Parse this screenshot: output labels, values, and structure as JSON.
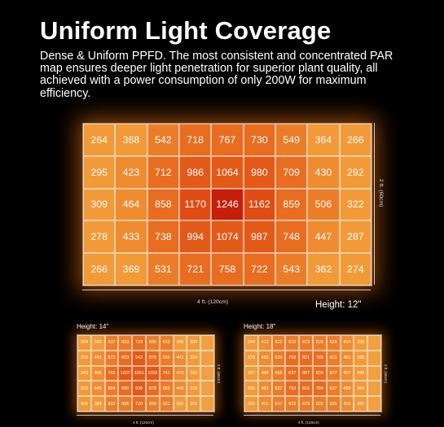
{
  "header": {
    "title": "Uniform Light Coverage",
    "description": "Dense & Uniform PPFD. The most consistent and concentrated PAR map ensures deeper light penetration for superior plant quality, all achieved with a power consumption of only 200W for maximum efficiency."
  },
  "main_map": {
    "width_label": "4 ft. (120cm)",
    "depth_label": "2 ft. (60cm)",
    "height_label": "Height: 12\"",
    "rows": [
      [
        264,
        368,
        542,
        718,
        767,
        730,
        549,
        364,
        266
      ],
      [
        295,
        423,
        712,
        986,
        1064,
        980,
        709,
        430,
        292
      ],
      [
        309,
        464,
        858,
        1170,
        1246,
        1162,
        859,
        506,
        322
      ],
      [
        278,
        433,
        738,
        994,
        1074,
        987,
        748,
        447,
        287
      ],
      [
        266,
        369,
        531,
        721,
        758,
        722,
        543,
        362,
        274
      ]
    ]
  },
  "map_14": {
    "height_label": "Height: 14\"",
    "width_label": "4 ft. (120cm)",
    "depth_label": "2 ft. (60cm)",
    "rows": [
      [
        304,
        392,
        537,
        693,
        723,
        696,
        533,
        386,
        305,
        ""
      ],
      [
        323,
        442,
        672,
        883,
        942,
        879,
        666,
        441,
        324,
        ""
      ],
      [
        343,
        468,
        750,
        1007,
        1061,
        1002,
        742,
        478,
        341,
        ""
      ],
      [
        323,
        445,
        664,
        880,
        936,
        878,
        659,
        446,
        318,
        ""
      ],
      [
        306,
        384,
        533,
        696,
        720,
        698,
        531,
        391,
        301,
        ""
      ]
    ]
  },
  "map_18": {
    "height_label": "Height: 18\"",
    "width_label": "4 ft. (120cm)",
    "depth_label": "2 ft. (60cm)",
    "rows": [
      [
        344,
        412,
        523,
        616,
        673,
        620,
        529,
        414,
        339,
        ""
      ],
      [
        370,
        465,
        634,
        768,
        821,
        769,
        631,
        481,
        368,
        ""
      ],
      [
        387,
        498,
        668,
        837,
        887,
        834,
        677,
        497,
        399,
        ""
      ],
      [
        365,
        491,
        637,
        783,
        816,
        784,
        637,
        485,
        364,
        ""
      ],
      [
        336,
        411,
        527,
        622,
        679,
        625,
        526,
        416,
        340,
        ""
      ]
    ]
  }
}
